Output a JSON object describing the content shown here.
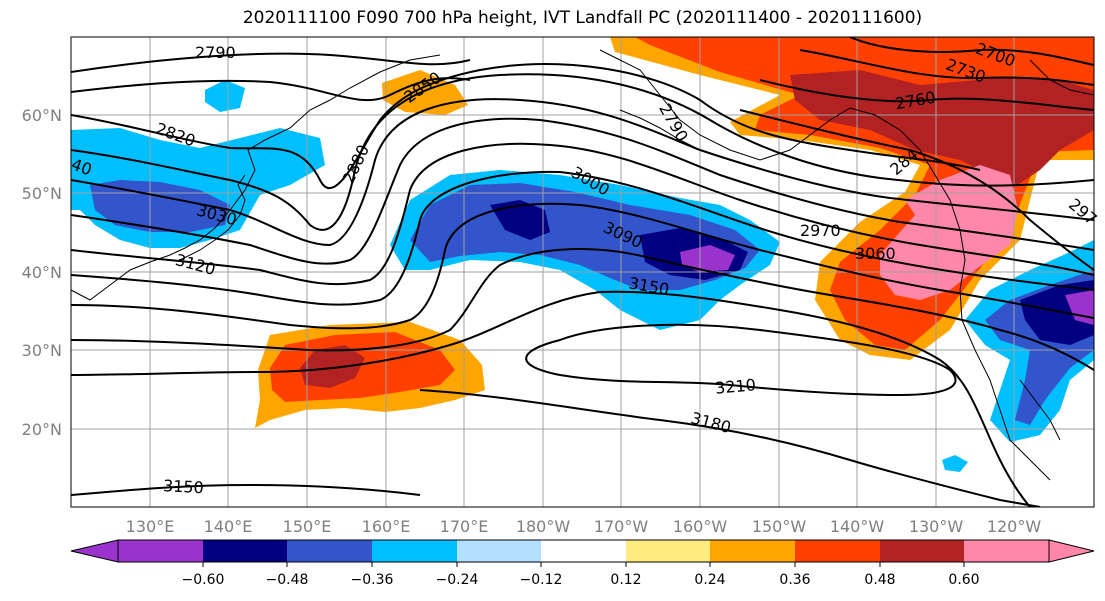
{
  "title": "2020111100 F090 700 hPa height, IVT Landfall PC (2020111400 - 2020111600)",
  "map": {
    "lat_labels": [
      "60°N",
      "50°N",
      "40°N",
      "30°N",
      "20°N"
    ],
    "lon_labels": [
      "130°E",
      "140°E",
      "150°E",
      "160°E",
      "170°E",
      "180°W",
      "170°W",
      "160°W",
      "150°W",
      "140°W",
      "130°W",
      "120°W"
    ],
    "contour_labels": [
      "2790",
      "2850",
      "2820",
      "2880",
      "3030",
      "3120",
      "3000",
      "3090",
      "3150",
      "2790",
      "2970",
      "3060",
      "2760",
      "2730",
      "2700",
      "3210",
      "3180",
      "3150",
      "40",
      "284",
      "297"
    ],
    "shading_colors": {
      "negative": [
        "#9933cc",
        "#000080",
        "#3355cc",
        "#00bfff",
        "#b3e0ff"
      ],
      "positive": [
        "#ffeb80",
        "#ffa500",
        "#ff4000",
        "#b22222",
        "#ff88aa"
      ]
    }
  },
  "colorbar": {
    "tick_labels": [
      "−0.60",
      "−0.48",
      "−0.36",
      "−0.24",
      "−0.12",
      "0.12",
      "0.24",
      "0.36",
      "0.48",
      "0.60"
    ],
    "colors": [
      "#9933cc",
      "#000080",
      "#3355cc",
      "#00bfff",
      "#b3e0ff",
      "#ffffff",
      "#ffeb80",
      "#ffa500",
      "#ff4000",
      "#b22222",
      "#ff88aa"
    ]
  }
}
